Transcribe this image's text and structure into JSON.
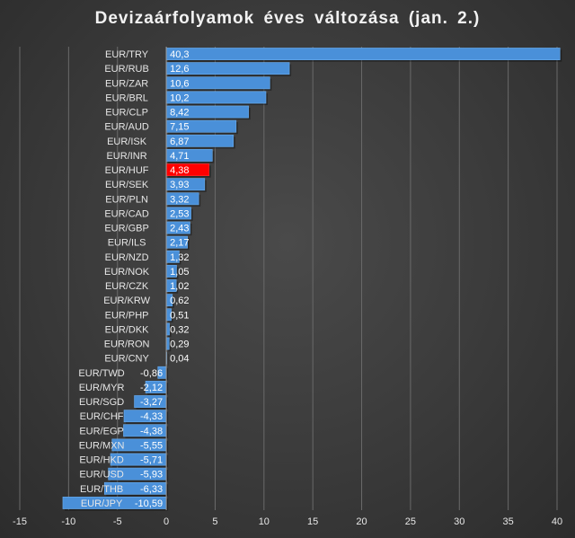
{
  "chart_data": {
    "type": "bar",
    "orientation": "horizontal",
    "title": "Devizaárfolyamok éves változása (jan. 2.)",
    "xlabel": "",
    "ylabel": "",
    "xlim": [
      -15,
      40
    ],
    "xticks": [
      "-15",
      "-10",
      "-5",
      "0",
      "5",
      "10",
      "15",
      "20",
      "25",
      "30",
      "35",
      "40"
    ],
    "grid": "vertical",
    "colors": {
      "default": "#4a90d9",
      "highlight": "#ff0000"
    },
    "highlight": "EUR/HUF",
    "categories": [
      "EUR/TRY",
      "EUR/RUB",
      "EUR/ZAR",
      "EUR/BRL",
      "EUR/CLP",
      "EUR/AUD",
      "EUR/ISK",
      "EUR/INR",
      "EUR/HUF",
      "EUR/SEK",
      "EUR/PLN",
      "EUR/CAD",
      "EUR/GBP",
      "EUR/ILS",
      "EUR/NZD",
      "EUR/NOK",
      "EUR/CZK",
      "EUR/KRW",
      "EUR/PHP",
      "EUR/DKK",
      "EUR/RON",
      "EUR/CNY",
      "EUR/TWD",
      "EUR/MYR",
      "EUR/SGD",
      "EUR/CHF",
      "EUR/EGP",
      "EUR/MXN",
      "EUR/HKD",
      "EUR/USD",
      "EUR/THB",
      "EUR/JPY"
    ],
    "values": [
      40.3,
      12.6,
      10.6,
      10.2,
      8.42,
      7.15,
      6.87,
      4.71,
      4.38,
      3.93,
      3.32,
      2.53,
      2.43,
      2.17,
      1.32,
      1.05,
      1.02,
      0.62,
      0.51,
      0.32,
      0.29,
      0.04,
      -0.86,
      -2.12,
      -3.27,
      -4.33,
      -4.38,
      -5.55,
      -5.71,
      -5.93,
      -6.33,
      -10.59
    ],
    "labels": [
      "40,3",
      "12,6",
      "10,6",
      "10,2",
      "8,42",
      "7,15",
      "6,87",
      "4,71",
      "4,38",
      "3,93",
      "3,32",
      "2,53",
      "2,43",
      "2,17",
      "1,32",
      "1,05",
      "1,02",
      "0,62",
      "0,51",
      "0,32",
      "0,29",
      "0,04",
      "-0,86",
      "-2,12",
      "-3,27",
      "-4,33",
      "-4,38",
      "-5,55",
      "-5,71",
      "-5,93",
      "-6,33",
      "-10,59"
    ]
  }
}
